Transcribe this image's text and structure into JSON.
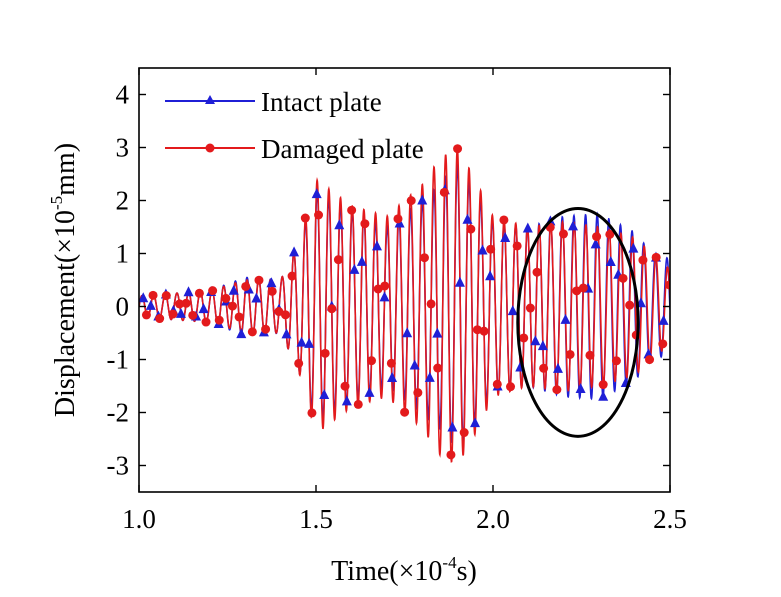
{
  "chart_data": {
    "type": "line",
    "xlabel": {
      "pre": "Time(×10",
      "sup": "-4",
      "post": "s)"
    },
    "ylabel": {
      "pre": "Displacement(×10",
      "sup": "-5",
      "post": "mm)"
    },
    "xlim": [
      1.0,
      2.5
    ],
    "ylim": [
      -3.5,
      4.5
    ],
    "xticks": [
      1.0,
      1.5,
      2.0,
      2.5
    ],
    "xtick_labels": [
      "1.0",
      "1.5",
      "2.0",
      "2.5"
    ],
    "yticks": [
      -3,
      -2,
      -1,
      0,
      1,
      2,
      3,
      4
    ],
    "ytick_labels": [
      "-3",
      "-2",
      "-1",
      "0",
      "1",
      "2",
      "3",
      "4"
    ],
    "grid": false,
    "legend_position": "top-left",
    "carrier_period": 0.033,
    "series": [
      {
        "name": "Intact plate",
        "color": "#1f1fd6",
        "marker": "triangle",
        "envelope": [
          [
            1.0,
            0.2
          ],
          [
            1.1,
            0.25
          ],
          [
            1.2,
            0.3
          ],
          [
            1.3,
            0.55
          ],
          [
            1.4,
            0.5
          ],
          [
            1.45,
            1.2
          ],
          [
            1.5,
            2.2
          ],
          [
            1.6,
            1.8
          ],
          [
            1.7,
            1.5
          ],
          [
            1.8,
            2.0
          ],
          [
            1.85,
            2.3
          ],
          [
            1.9,
            2.7
          ],
          [
            1.95,
            2.2
          ],
          [
            2.0,
            1.6
          ],
          [
            2.1,
            1.5
          ],
          [
            2.2,
            1.7
          ],
          [
            2.3,
            1.75
          ],
          [
            2.4,
            1.4
          ],
          [
            2.45,
            1.0
          ],
          [
            2.5,
            0.9
          ]
        ],
        "phase_shift": [
          [
            1.0,
            0.0
          ],
          [
            2.1,
            0.0
          ],
          [
            2.5,
            0.35
          ]
        ]
      },
      {
        "name": "Damaged plate",
        "color": "#e31a1c",
        "marker": "circle",
        "envelope": [
          [
            1.0,
            0.2
          ],
          [
            1.1,
            0.25
          ],
          [
            1.2,
            0.3
          ],
          [
            1.3,
            0.5
          ],
          [
            1.4,
            0.5
          ],
          [
            1.45,
            1.2
          ],
          [
            1.5,
            2.4
          ],
          [
            1.6,
            1.9
          ],
          [
            1.7,
            1.7
          ],
          [
            1.8,
            2.3
          ],
          [
            1.85,
            2.8
          ],
          [
            1.9,
            3.0
          ],
          [
            1.95,
            2.4
          ],
          [
            2.0,
            1.7
          ],
          [
            2.1,
            1.5
          ],
          [
            2.2,
            1.6
          ],
          [
            2.3,
            1.5
          ],
          [
            2.4,
            1.3
          ],
          [
            2.45,
            1.0
          ],
          [
            2.5,
            0.7
          ]
        ],
        "phase_shift": [
          [
            1.0,
            0.0
          ],
          [
            2.5,
            0.0
          ]
        ]
      }
    ],
    "annotation": {
      "shape": "ellipse",
      "center": [
        2.24,
        -0.3
      ],
      "radius_x": 0.17,
      "radius_y": 2.15
    }
  }
}
